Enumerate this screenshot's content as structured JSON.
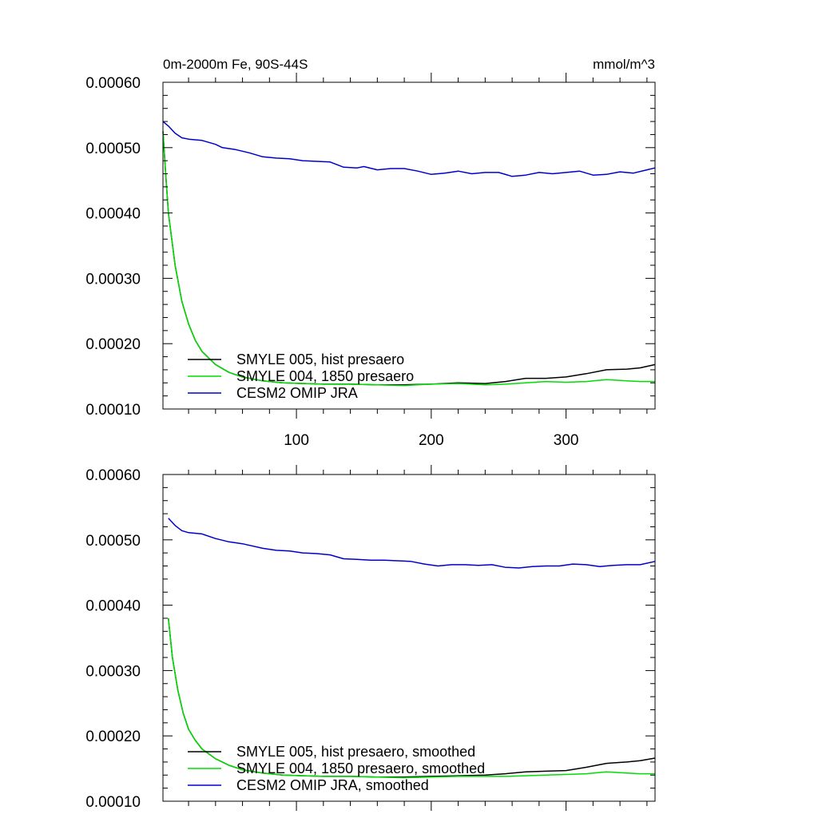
{
  "chart_data": [
    {
      "type": "line",
      "title": "0m-2000m Fe, 90S-44S",
      "units": "mmol/m^3",
      "xlim": [
        1,
        366
      ],
      "ylim": [
        0.0001,
        0.0006
      ],
      "xticks": [
        100,
        200,
        300
      ],
      "xticklabels": [
        "100",
        "200",
        "300"
      ],
      "yticks": [
        0.0001,
        0.0002,
        0.0003,
        0.0004,
        0.0005,
        0.0006
      ],
      "yticklabels": [
        "0.00010",
        "0.00020",
        "0.00030",
        "0.00040",
        "0.00050",
        "0.00060"
      ],
      "legend_position": "bottom-left",
      "series": [
        {
          "name": "SMYLE 005, hist presaero",
          "color": "#000000",
          "x": [
            1,
            3,
            5,
            10,
            15,
            20,
            25,
            30,
            40,
            50,
            60,
            75,
            90,
            105,
            120,
            140,
            160,
            180,
            200,
            220,
            240,
            255,
            270,
            285,
            300,
            315,
            330,
            345,
            355,
            366
          ],
          "y": [
            0.000525,
            0.00046,
            0.0004,
            0.00032,
            0.000265,
            0.00023,
            0.000205,
            0.000188,
            0.000168,
            0.000156,
            0.000149,
            0.000143,
            0.00014,
            0.000139,
            0.000138,
            0.000138,
            0.000137,
            0.000137,
            0.000138,
            0.00014,
            0.000139,
            0.000142,
            0.000147,
            0.000147,
            0.000149,
            0.000154,
            0.00016,
            0.000161,
            0.000163,
            0.000168
          ]
        },
        {
          "name": "SMYLE 004, 1850 presaero",
          "color": "#00dd00",
          "x": [
            1,
            3,
            5,
            10,
            15,
            20,
            25,
            30,
            40,
            50,
            60,
            75,
            90,
            105,
            120,
            140,
            160,
            180,
            200,
            220,
            240,
            255,
            270,
            285,
            300,
            315,
            330,
            345,
            355,
            366
          ],
          "y": [
            0.000525,
            0.00046,
            0.0004,
            0.00032,
            0.000265,
            0.00023,
            0.000205,
            0.000188,
            0.000168,
            0.000156,
            0.000149,
            0.000143,
            0.00014,
            0.000139,
            0.000138,
            0.000138,
            0.000137,
            0.000136,
            0.000138,
            0.000139,
            0.000137,
            0.000138,
            0.00014,
            0.000142,
            0.000141,
            0.000142,
            0.000145,
            0.000143,
            0.000142,
            0.000142
          ]
        },
        {
          "name": "CESM2 OMIP JRA",
          "color": "#0000cc",
          "x": [
            1,
            5,
            10,
            15,
            20,
            30,
            40,
            45,
            55,
            65,
            75,
            85,
            95,
            105,
            115,
            125,
            135,
            145,
            150,
            160,
            170,
            180,
            190,
            200,
            210,
            220,
            230,
            240,
            250,
            260,
            270,
            280,
            290,
            300,
            310,
            320,
            330,
            340,
            350,
            360,
            366
          ],
          "y": [
            0.00054,
            0.000533,
            0.000522,
            0.000515,
            0.000513,
            0.000511,
            0.000505,
            0.0005,
            0.000497,
            0.000492,
            0.000486,
            0.000484,
            0.000483,
            0.00048,
            0.000479,
            0.000478,
            0.00047,
            0.000469,
            0.000471,
            0.000466,
            0.000468,
            0.000468,
            0.000464,
            0.000459,
            0.000461,
            0.000464,
            0.00046,
            0.000462,
            0.000462,
            0.000456,
            0.000458,
            0.000462,
            0.00046,
            0.000462,
            0.000464,
            0.000458,
            0.000459,
            0.000463,
            0.000461,
            0.000466,
            0.000469
          ]
        }
      ]
    },
    {
      "type": "line",
      "xlim": [
        1,
        366
      ],
      "ylim": [
        0.0001,
        0.0006
      ],
      "xticks": [
        100,
        200,
        300
      ],
      "yticks": [
        0.0001,
        0.0002,
        0.0003,
        0.0004,
        0.0005,
        0.0006
      ],
      "yticklabels": [
        "0.00010",
        "0.00020",
        "0.00030",
        "0.00040",
        "0.00050",
        "0.00060"
      ],
      "legend_position": "bottom-left",
      "series": [
        {
          "name": "SMYLE 005, hist presaero, smoothed",
          "color": "#000000",
          "x": [
            5,
            8,
            12,
            16,
            20,
            25,
            30,
            40,
            50,
            60,
            75,
            90,
            105,
            120,
            140,
            160,
            180,
            200,
            220,
            240,
            255,
            270,
            285,
            300,
            315,
            330,
            345,
            355,
            366
          ],
          "y": [
            0.00038,
            0.00032,
            0.00027,
            0.000235,
            0.00021,
            0.000193,
            0.00018,
            0.000165,
            0.000155,
            0.000148,
            0.000143,
            0.00014,
            0.000139,
            0.000138,
            0.000138,
            0.000137,
            0.000137,
            0.000138,
            0.000139,
            0.00014,
            0.000142,
            0.000145,
            0.000146,
            0.000147,
            0.000152,
            0.000158,
            0.00016,
            0.000162,
            0.000166
          ]
        },
        {
          "name": "SMYLE 004, 1850 presaero, smoothed",
          "color": "#00dd00",
          "x": [
            5,
            8,
            12,
            16,
            20,
            25,
            30,
            40,
            50,
            60,
            75,
            90,
            105,
            120,
            140,
            160,
            180,
            200,
            220,
            240,
            255,
            270,
            285,
            300,
            315,
            330,
            345,
            355,
            366
          ],
          "y": [
            0.00038,
            0.00032,
            0.00027,
            0.000235,
            0.00021,
            0.000193,
            0.00018,
            0.000165,
            0.000155,
            0.000148,
            0.000143,
            0.00014,
            0.000139,
            0.000138,
            0.000138,
            0.000137,
            0.000136,
            0.000137,
            0.000138,
            0.000138,
            0.000138,
            0.000139,
            0.00014,
            0.000141,
            0.000142,
            0.000145,
            0.000143,
            0.000142,
            0.000142
          ]
        },
        {
          "name": "CESM2 OMIP JRA, smoothed",
          "color": "#0000cc",
          "x": [
            5,
            10,
            15,
            20,
            30,
            40,
            50,
            60,
            75,
            85,
            95,
            105,
            115,
            125,
            135,
            145,
            155,
            165,
            175,
            185,
            195,
            205,
            215,
            225,
            235,
            245,
            255,
            265,
            275,
            285,
            295,
            305,
            315,
            325,
            335,
            345,
            355,
            366
          ],
          "y": [
            0.000533,
            0.000522,
            0.000514,
            0.000511,
            0.000509,
            0.000502,
            0.000497,
            0.000494,
            0.000487,
            0.000484,
            0.000483,
            0.00048,
            0.000479,
            0.000477,
            0.000471,
            0.00047,
            0.000469,
            0.000469,
            0.000468,
            0.000467,
            0.000463,
            0.00046,
            0.000462,
            0.000462,
            0.000461,
            0.000462,
            0.000458,
            0.000457,
            0.000459,
            0.00046,
            0.00046,
            0.000463,
            0.000462,
            0.000459,
            0.000461,
            0.000462,
            0.000462,
            0.000467
          ]
        }
      ]
    }
  ]
}
